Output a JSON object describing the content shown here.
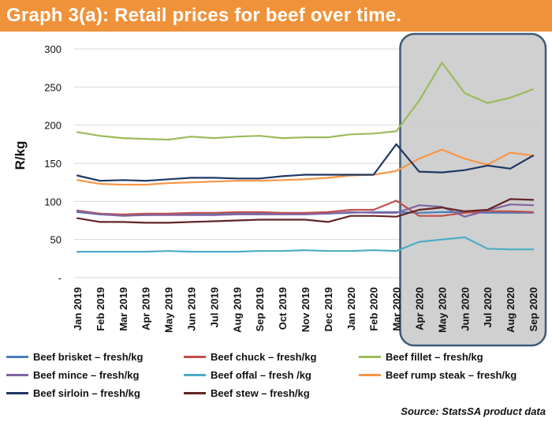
{
  "header": {
    "title": "Graph 3(a): Retail prices for beef over time."
  },
  "source": "Source: StatsSA product data",
  "colors": {
    "title_bg": "#f0923a",
    "highlight_fill": "#c9c9c9",
    "highlight_border": "#3d5a78"
  },
  "chart_data": {
    "type": "line",
    "title": "Graph 3(a): Retail prices for beef over time.",
    "ylabel": "R/kg",
    "xlabel": "",
    "ylim": [
      0,
      300
    ],
    "yticks": [
      {
        "value": 0,
        "label": "-"
      },
      {
        "value": 50,
        "label": "50"
      },
      {
        "value": 100,
        "label": "100"
      },
      {
        "value": 150,
        "label": "150"
      },
      {
        "value": 200,
        "label": "200"
      },
      {
        "value": 250,
        "label": "250"
      },
      {
        "value": 300,
        "label": "300"
      }
    ],
    "grid": true,
    "legend_position": "bottom",
    "highlight": {
      "from": "Apr 2020",
      "to": "Sep 2020"
    },
    "categories": [
      "Jan 2019",
      "Feb 2019",
      "Mar 2019",
      "Apr 2019",
      "May 2019",
      "Jun 2019",
      "Jul 2019",
      "Aug 2019",
      "Sep 2019",
      "Oct 2019",
      "Nov 2019",
      "Dec 2019",
      "Jan 2020",
      "Feb 2020",
      "Mar 2020",
      "Apr 2020",
      "May 2020",
      "Jun 2020",
      "Jul 2020",
      "Aug 2020",
      "Sep 2020"
    ],
    "series": [
      {
        "name": "Beef brisket – fresh/kg",
        "color": "#4a7ebb",
        "values": [
          86,
          83,
          82,
          82,
          83,
          83,
          83,
          84,
          84,
          84,
          84,
          84,
          85,
          86,
          86,
          85,
          86,
          86,
          85,
          85,
          85
        ]
      },
      {
        "name": "Beef chuck – fresh/kg",
        "color": "#c0504d",
        "values": [
          88,
          84,
          83,
          84,
          84,
          85,
          85,
          86,
          86,
          85,
          85,
          86,
          89,
          89,
          101,
          81,
          81,
          85,
          87,
          87,
          86
        ]
      },
      {
        "name": "Beef fillet – fresh/kg",
        "color": "#9bbb59",
        "values": [
          191,
          186,
          183,
          182,
          181,
          185,
          183,
          185,
          186,
          183,
          184,
          184,
          188,
          189,
          192,
          232,
          282,
          242,
          229,
          236,
          247
        ]
      },
      {
        "name": "Beef mince – fresh/kg",
        "color": "#8064a2",
        "values": [
          87,
          83,
          81,
          82,
          82,
          82,
          82,
          83,
          83,
          83,
          83,
          84,
          86,
          85,
          85,
          95,
          93,
          80,
          88,
          96,
          95
        ]
      },
      {
        "name": "Beef offal – fresh /kg",
        "color": "#4bacc6",
        "values": [
          34,
          34,
          34,
          34,
          35,
          34,
          34,
          34,
          35,
          35,
          36,
          35,
          35,
          36,
          35,
          47,
          50,
          53,
          38,
          37,
          37
        ]
      },
      {
        "name": "Beef rump steak – fresh/kg",
        "color": "#f79646",
        "values": [
          128,
          123,
          122,
          122,
          124,
          125,
          126,
          127,
          127,
          128,
          129,
          131,
          134,
          135,
          140,
          156,
          168,
          156,
          148,
          164,
          160
        ]
      },
      {
        "name": "Beef sirloin – fresh/kg",
        "color": "#1f3864",
        "values": [
          134,
          127,
          128,
          127,
          129,
          131,
          131,
          130,
          130,
          133,
          135,
          135,
          135,
          135,
          175,
          139,
          138,
          141,
          147,
          143,
          160
        ]
      },
      {
        "name": "Beef stew – fresh/kg",
        "color": "#632523",
        "values": [
          78,
          73,
          73,
          72,
          72,
          73,
          74,
          75,
          76,
          76,
          76,
          73,
          81,
          81,
          80,
          89,
          92,
          87,
          89,
          103,
          102
        ]
      }
    ]
  }
}
